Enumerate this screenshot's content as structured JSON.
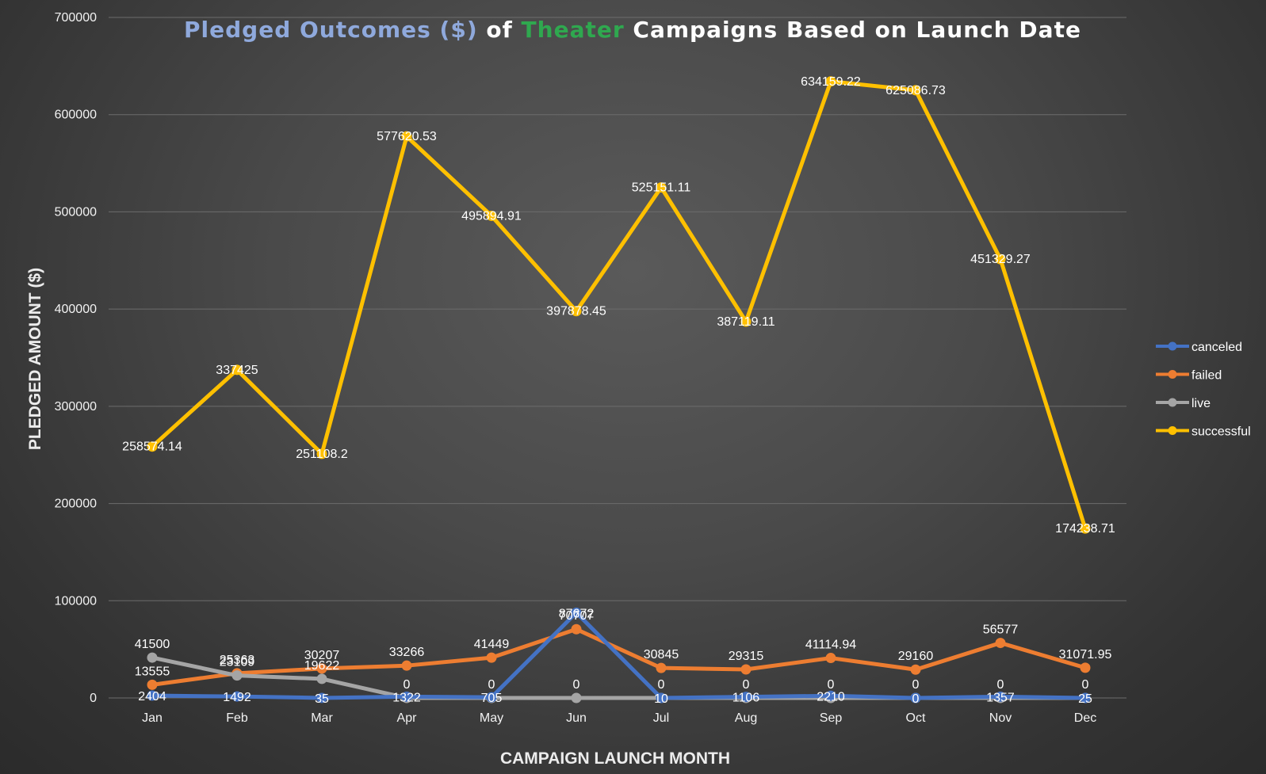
{
  "chart_data": {
    "type": "line",
    "title_parts": [
      {
        "text": "Pledged Outcomes ($)",
        "color": "#8fa9dc"
      },
      {
        "text": " of ",
        "color": "#ffffff"
      },
      {
        "text": "Theater",
        "color": "#2fa84f"
      },
      {
        "text": " Campaigns Based on Launch Date",
        "color": "#ffffff"
      }
    ],
    "xlabel": "CAMPAIGN LAUNCH MONTH",
    "ylabel": "PLEDGED AMOUNT ($)",
    "ylim": [
      0,
      700000
    ],
    "yticks": [
      "0",
      "100000",
      "200000",
      "300000",
      "400000",
      "500000",
      "600000",
      "700000"
    ],
    "ytick_values": [
      0,
      100000,
      200000,
      300000,
      400000,
      500000,
      600000,
      700000
    ],
    "categories": [
      "Jan",
      "Feb",
      "Mar",
      "Apr",
      "May",
      "Jun",
      "Jul",
      "Aug",
      "Sep",
      "Oct",
      "Nov",
      "Dec"
    ],
    "grid": true,
    "legend_position": "right",
    "series": [
      {
        "name": "canceled",
        "color": "#4472c4",
        "values": [
          2404,
          1492,
          35,
          1322,
          705,
          87672,
          10,
          1106,
          2210,
          0,
          1357,
          25
        ],
        "labels": [
          "2404",
          "1492",
          "35",
          "1322",
          "705",
          "87672",
          "10",
          "1106",
          "2210",
          "0",
          "1357",
          "25"
        ]
      },
      {
        "name": "failed",
        "color": "#ed7d31",
        "values": [
          13555,
          25363,
          30207,
          33266,
          41449,
          70707,
          30845,
          29315,
          41114.94,
          29160,
          56577,
          31071.95
        ],
        "labels": [
          "13555",
          "25363",
          "30207",
          "33266",
          "41449",
          "70707",
          "30845",
          "29315",
          "41114.94",
          "29160",
          "56577",
          "31071.95"
        ]
      },
      {
        "name": "live",
        "color": "#a5a5a5",
        "values": [
          41500,
          23109,
          19622,
          0,
          0,
          0,
          0,
          0,
          0,
          0,
          0,
          0
        ],
        "labels": [
          "41500",
          "23109",
          "19622",
          "0",
          "0",
          "0",
          "0",
          "0",
          "0",
          "0",
          "0",
          "0"
        ]
      },
      {
        "name": "successful",
        "color": "#ffc000",
        "values": [
          258574.14,
          337425,
          251108.2,
          577620.53,
          495894.91,
          397878.45,
          525151.11,
          387119.11,
          634159.22,
          625086.73,
          451329.27,
          174238.71
        ],
        "labels": [
          "258574.14",
          "337425",
          "251108.2",
          "577620.53",
          "495894.91",
          "397878.45",
          "525151.11",
          "387119.11",
          "634159.22",
          "625086.73",
          "451329.27",
          "174238.71"
        ]
      }
    ]
  }
}
